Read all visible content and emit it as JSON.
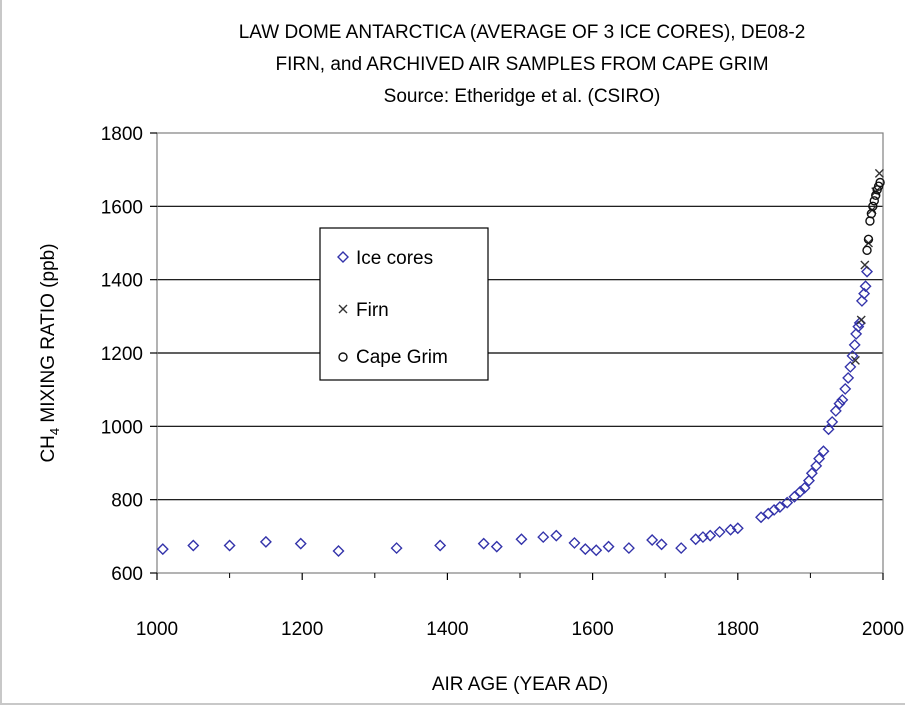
{
  "chart_data": {
    "type": "scatter",
    "title": "LAW DOME ANTARCTICA (AVERAGE OF 3 ICE CORES), DE08-2",
    "subtitle": "FIRN, and ARCHIVED AIR SAMPLES FROM CAPE GRIM",
    "source": "Source: Etheridge et al. (CSIRO)",
    "xlabel": "AIR AGE (YEAR AD)",
    "ylabel_prefix": "CH",
    "ylabel_subscript": "4",
    "ylabel_suffix": " MIXING RATIO (ppb)",
    "xlim": [
      1000,
      2000
    ],
    "ylim": [
      600,
      1800
    ],
    "x_ticks": [
      "1000",
      "1200",
      "1400",
      "1600",
      "1800",
      "2000"
    ],
    "y_ticks": [
      "600",
      "800",
      "1000",
      "1200",
      "1400",
      "1600",
      "1800"
    ],
    "grid": "horizontal",
    "legend_position": "upper-left",
    "series": [
      {
        "name": "Ice cores",
        "marker": "diamond",
        "color": "#3333aa",
        "x": [
          1008,
          1050,
          1100,
          1150,
          1198,
          1250,
          1330,
          1390,
          1450,
          1468,
          1502,
          1532,
          1550,
          1575,
          1590,
          1605,
          1622,
          1650,
          1682,
          1695,
          1722,
          1742,
          1752,
          1762,
          1775,
          1790,
          1800,
          1832,
          1842,
          1850,
          1858,
          1868,
          1878,
          1886,
          1892,
          1898,
          1902,
          1908,
          1912,
          1918,
          1925,
          1930,
          1935,
          1940,
          1944,
          1948,
          1952,
          1955,
          1958,
          1961,
          1963,
          1966,
          1968,
          1971,
          1974,
          1976,
          1978
        ],
        "y": [
          665,
          675,
          675,
          685,
          680,
          660,
          668,
          675,
          680,
          672,
          692,
          698,
          702,
          682,
          665,
          662,
          672,
          668,
          690,
          678,
          668,
          692,
          698,
          702,
          712,
          718,
          722,
          752,
          762,
          772,
          780,
          792,
          808,
          822,
          832,
          852,
          872,
          892,
          912,
          932,
          992,
          1012,
          1042,
          1062,
          1072,
          1102,
          1132,
          1162,
          1192,
          1222,
          1252,
          1272,
          1282,
          1342,
          1362,
          1382,
          1422
        ]
      },
      {
        "name": "Firn",
        "marker": "x",
        "color": "#333333",
        "x": [
          1962,
          1970,
          1975,
          1980,
          1985,
          1990,
          1995
        ],
        "y": [
          1180,
          1290,
          1440,
          1500,
          1590,
          1640,
          1690
        ]
      },
      {
        "name": "Cape Grim",
        "marker": "circle",
        "color": "#111111",
        "x": [
          1978,
          1980,
          1982,
          1984,
          1986,
          1988,
          1990,
          1992,
          1994,
          1996
        ],
        "y": [
          1480,
          1510,
          1560,
          1580,
          1600,
          1615,
          1630,
          1645,
          1655,
          1665
        ]
      }
    ]
  }
}
